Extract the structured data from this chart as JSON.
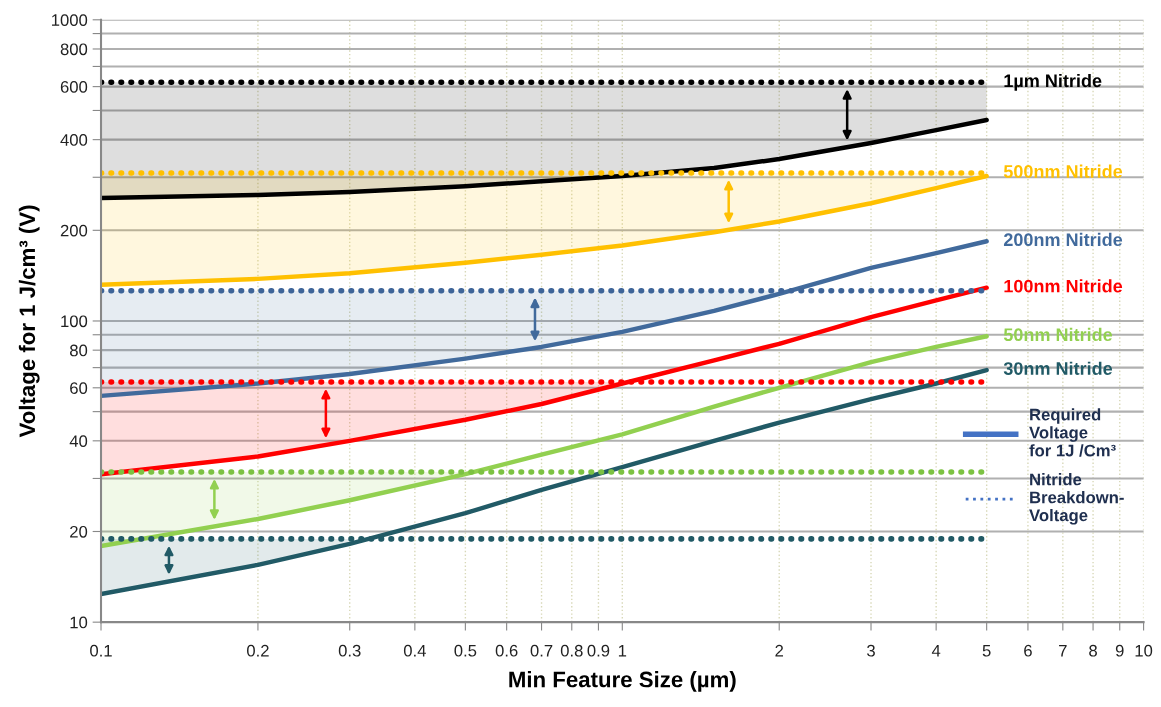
{
  "chart_data": {
    "type": "line",
    "xlabel": "Min Feature Size (µm)",
    "ylabel": "Voltage for 1 J/cm³ (V)",
    "log": "xy",
    "grid": true,
    "legend": "right",
    "marker": "none",
    "annotations": [
      "Required\nVoltage\nfor 1J /Cm³",
      "Nitride\nBreakdown-\nVoltage"
    ],
    "xlim": [
      0.1,
      10
    ],
    "xticks": [
      0.1,
      0.2,
      0.3,
      0.4,
      0.5,
      0.6,
      0.7,
      0.8,
      0.9,
      1,
      2,
      3,
      4,
      5,
      6,
      7,
      8,
      9,
      10
    ],
    "ylim": [
      10,
      1000
    ],
    "yticks": [
      10,
      20,
      {
        "value": 30,
        "label": null
      },
      40,
      {
        "value": 50,
        "label": null
      },
      60,
      {
        "value": 70,
        "label": null
      },
      80,
      {
        "value": 90,
        "label": null
      },
      100,
      200,
      {
        "value": 300,
        "label": null
      },
      400,
      {
        "value": 500,
        "label": null
      },
      600,
      {
        "value": 700,
        "label": null
      },
      800,
      {
        "value": 900,
        "label": null
      },
      1000
    ],
    "x": [
      0.1,
      0.2,
      0.3,
      0.5,
      0.7,
      1,
      1.5,
      2,
      3,
      4,
      5
    ],
    "series": [
      {
        "name": "1µm Nitride",
        "color": "#000000",
        "line_style": "solid",
        "values": [
          256,
          262,
          268,
          280,
          291,
          303,
          322,
          345,
          390,
          430,
          465
        ],
        "lower": [
          256,
          262,
          268,
          280,
          291,
          303,
          322,
          345,
          390,
          430,
          465
        ],
        "upper": [
          620,
          620,
          620,
          620,
          620,
          620,
          620,
          620,
          620,
          620,
          620
        ]
      },
      {
        "name": "500nm Nitride",
        "color": "#ffc000",
        "line_style": "solid",
        "values": [
          132,
          138,
          144,
          156,
          166,
          178,
          197,
          214,
          246,
          276,
          303
        ],
        "lower": [
          132,
          138,
          144,
          156,
          166,
          178,
          197,
          214,
          246,
          276,
          303
        ],
        "upper": [
          310,
          310,
          310,
          310,
          310,
          310,
          310,
          310,
          310,
          310,
          310
        ]
      },
      {
        "name": "200nm Nitride",
        "color": "#416a9c",
        "line_style": "solid",
        "values": [
          56.4,
          62,
          66.7,
          75,
          82,
          92,
          108,
          123,
          150,
          168,
          184
        ],
        "lower": [
          56.4,
          62,
          66.7,
          75,
          82,
          92,
          108,
          123,
          null,
          null,
          null
        ],
        "upper": [
          126,
          126,
          126,
          126,
          126,
          126,
          126,
          126,
          null,
          null,
          null
        ]
      },
      {
        "name": "100nm Nitride",
        "color": "#ff0000",
        "line_style": "solid",
        "values": [
          31,
          35.5,
          40,
          47,
          53,
          62,
          74,
          84,
          103,
          117,
          129
        ],
        "lower": [
          31,
          35.5,
          40,
          47,
          53,
          62,
          null,
          null,
          null,
          null,
          null
        ],
        "upper": [
          62.7,
          62.7,
          62.7,
          62.7,
          62.7,
          62.7,
          null,
          null,
          null,
          null,
          null
        ]
      },
      {
        "name": "50nm Nitride",
        "color": "#92d050",
        "line_style": "solid",
        "values": [
          17.9,
          22,
          25.4,
          31,
          36,
          42,
          52,
          60,
          73,
          82,
          89
        ],
        "lower": [
          17.9,
          22,
          25.4,
          31,
          null,
          null,
          null,
          null,
          null,
          null,
          null
        ],
        "upper": [
          31.5,
          31.5,
          31.5,
          31.5,
          null,
          null,
          null,
          null,
          null,
          null,
          null
        ]
      },
      {
        "name": "30nm Nitride",
        "color": "#215a66",
        "line_style": "solid",
        "values": [
          12.4,
          15.5,
          18.2,
          23,
          27.5,
          32.7,
          40,
          46,
          55,
          62,
          68.7
        ],
        "lower": [
          12.4,
          15.5,
          18.2,
          null,
          null,
          null,
          null,
          null,
          null,
          null,
          null
        ],
        "upper": [
          18.9,
          18.9,
          18.9,
          null,
          null,
          null,
          null,
          null,
          null,
          null,
          null
        ]
      },
      {
        "color": "#000000",
        "line_style": "dotted",
        "values": [
          620,
          620,
          620,
          620,
          620,
          620,
          620,
          620,
          620,
          620,
          620
        ]
      },
      {
        "color": "#ffc000",
        "line_style": "dotted",
        "values": [
          310,
          310,
          310,
          310,
          310,
          310,
          310,
          310,
          310,
          310,
          310
        ]
      },
      {
        "color": "#3f6599",
        "line_style": "dotted",
        "values": [
          126,
          126,
          126,
          126,
          126,
          126,
          126,
          126,
          126,
          126,
          126
        ]
      },
      {
        "color": "#ff0000",
        "line_style": "dotted",
        "values": [
          62.7,
          62.7,
          62.7,
          62.7,
          62.7,
          62.7,
          62.7,
          62.7,
          62.7,
          62.7,
          62.7
        ]
      },
      {
        "color": "#7cc242",
        "line_style": "dotted",
        "values": [
          31.5,
          31.5,
          31.5,
          31.5,
          31.5,
          31.5,
          31.5,
          31.5,
          31.5,
          31.5,
          31.5
        ]
      },
      {
        "color": "#215a66",
        "line_style": "dotted",
        "values": [
          18.9,
          18.9,
          18.9,
          18.9,
          18.9,
          18.9,
          18.9,
          18.9,
          18.9,
          18.9,
          18.9
        ]
      }
    ]
  }
}
